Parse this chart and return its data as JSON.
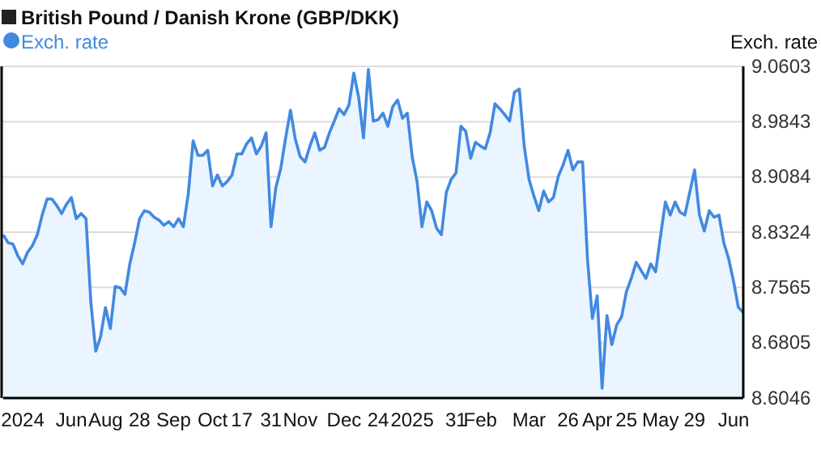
{
  "chart_data": {
    "type": "area",
    "title": "British Pound / Danish Krone (GBP/DKK)",
    "ylabel": "Exch. rate",
    "legend": "top left",
    "grid": "y",
    "ylim": [
      8.6046,
      9.0603
    ],
    "yticks": [
      8.6046,
      8.6805,
      8.7565,
      8.8324,
      8.9084,
      8.9843,
      9.0603
    ],
    "categories": [
      null,
      null,
      null,
      null,
      "2024",
      null,
      null,
      null,
      null,
      null,
      null,
      null,
      null,
      null,
      "Jun",
      null,
      null,
      null,
      null,
      null,
      null,
      "Aug",
      null,
      null,
      null,
      null,
      null,
      null,
      "28",
      null,
      null,
      null,
      null,
      null,
      null,
      "Sep",
      null,
      null,
      null,
      null,
      null,
      null,
      null,
      "Oct",
      null,
      null,
      null,
      null,
      null,
      "17",
      null,
      null,
      null,
      null,
      null,
      "31",
      null,
      null,
      null,
      null,
      null,
      "Nov",
      null,
      null,
      null,
      null,
      null,
      null,
      null,
      null,
      "Dec",
      null,
      null,
      null,
      null,
      null,
      null,
      "24",
      null,
      null,
      null,
      null,
      null,
      null,
      "2025",
      null,
      null,
      null,
      null,
      null,
      null,
      null,
      null,
      "31",
      null,
      null,
      null,
      null,
      "Feb",
      null,
      null,
      null,
      null,
      null,
      null,
      null,
      null,
      null,
      "Mar",
      null,
      null,
      null,
      null,
      null,
      null,
      null,
      "26",
      null,
      null,
      null,
      null,
      null,
      "Apr",
      null,
      null,
      null,
      null,
      null,
      "25",
      null,
      null,
      null,
      null,
      null,
      null,
      "May",
      null,
      null,
      null,
      null,
      null,
      null,
      "29",
      null,
      null,
      null,
      null,
      null,
      null,
      null,
      "Jun",
      null,
      null
    ],
    "series": [
      {
        "name": "Exch. rate",
        "color": "#4289e0",
        "values": [
          8.829,
          8.818,
          8.816,
          8.8,
          8.789,
          8.805,
          8.814,
          8.829,
          8.856,
          8.878,
          8.878,
          8.869,
          8.858,
          8.871,
          8.88,
          8.851,
          8.858,
          8.851,
          8.736,
          8.669,
          8.689,
          8.729,
          8.7,
          8.758,
          8.756,
          8.747,
          8.789,
          8.818,
          8.851,
          8.862,
          8.86,
          8.853,
          8.849,
          8.842,
          8.847,
          8.84,
          8.851,
          8.84,
          8.885,
          8.958,
          8.938,
          8.938,
          8.945,
          8.896,
          8.911,
          8.896,
          8.902,
          8.911,
          8.94,
          8.94,
          8.954,
          8.962,
          8.94,
          8.951,
          8.969,
          8.84,
          8.894,
          8.92,
          8.962,
          9.0,
          8.96,
          8.936,
          8.929,
          8.951,
          8.969,
          8.945,
          8.949,
          8.969,
          8.985,
          9.002,
          8.994,
          9.007,
          9.051,
          9.018,
          8.962,
          9.056,
          8.985,
          8.987,
          8.996,
          8.978,
          9.005,
          9.014,
          8.989,
          8.996,
          8.936,
          8.902,
          8.84,
          8.874,
          8.862,
          8.838,
          8.829,
          8.887,
          8.905,
          8.914,
          8.978,
          8.971,
          8.934,
          8.956,
          8.951,
          8.947,
          8.969,
          9.009,
          9.002,
          8.994,
          8.985,
          9.025,
          9.029,
          8.951,
          8.905,
          8.882,
          8.862,
          8.889,
          8.874,
          8.88,
          8.909,
          8.925,
          8.945,
          8.918,
          8.929,
          8.929,
          8.796,
          8.714,
          8.745,
          8.618,
          8.718,
          8.678,
          8.705,
          8.716,
          8.751,
          8.769,
          8.791,
          8.78,
          8.769,
          8.789,
          8.778,
          8.827,
          8.874,
          8.856,
          8.874,
          8.86,
          8.856,
          8.887,
          8.918,
          8.856,
          8.834,
          8.862,
          8.853,
          8.856,
          8.818,
          8.796,
          8.765,
          8.729,
          8.722
        ]
      }
    ]
  }
}
